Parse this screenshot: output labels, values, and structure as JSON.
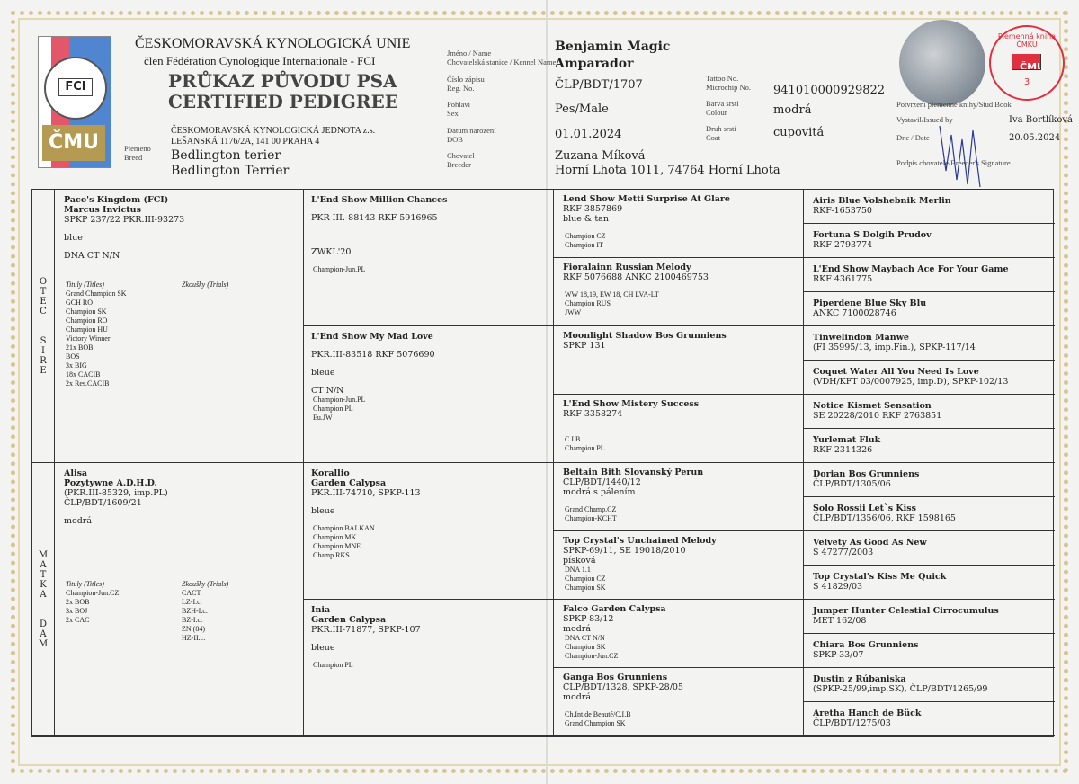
{
  "header": {
    "union": "ČESKOMORAVSKÁ KYNOLOGICKÁ UNIE",
    "fci_member": "člen Fédération Cynologique Internationale - FCI",
    "title_cz": "PRŮKAZ PŮVODU PSA",
    "title_en": "CERTIFIED PEDIGREE",
    "org": "ČESKOMORAVSKÁ KYNOLOGICKÁ JEDNOTA z.s.",
    "address": "LEŠANSKÁ 1176/2A, 141 00 PRAHA 4",
    "logo_text": "FCI",
    "logo_cmku": "ČMU",
    "breed_label_cz": "Plemeno",
    "breed_label_en": "Breed",
    "breed_cz": "Bedlington terier",
    "breed_en": "Bedlington Terrier"
  },
  "dog": {
    "name_label_cz": "Jméno / Name",
    "name_label_en": "Chovatelská stanice / Kennel Name",
    "name": "Benjamin Magic",
    "kennel": "Amparador",
    "reg_label_cz": "Číslo zápisu",
    "reg_label_en": "Reg. No.",
    "reg": "ČLP/BDT/1707",
    "sex_label_cz": "Pohlaví",
    "sex_label_en": "Sex",
    "sex": "Pes/Male",
    "dob_label_cz": "Datum narození",
    "dob_label_en": "DOB",
    "dob": "01.01.2024",
    "breeder_label_cz": "Chovatel",
    "breeder_label_en": "Breeder",
    "breeder_name": "Zuzana Míková",
    "breeder_address": "Horní Lhota 1011, 74764 Horní Lhota",
    "tattoo_label": "Tattoo No.",
    "chip_label": "Microchip No.",
    "chip": "941010000929822",
    "colour_label_cz": "Barva srsti",
    "colour_label_en": "Colour",
    "colour": "modrá",
    "coat_label_cz": "Druh srsti",
    "coat_label_en": "Coat",
    "coat": "cupovitá"
  },
  "studbook": {
    "confirm_label": "Potvrzení plemenné knihy/Stud Book",
    "issued_label": "Vystavil/Issued by",
    "issued_by": "Iva Bortlíková",
    "date_label": "Dne / Date",
    "date": "20.05.2024",
    "signature_label": "Podpis chovatele/Breeder's Signature",
    "stamp_text": "Plemenná kniha ČMKU",
    "stamp_number": "3"
  },
  "side_labels": {
    "sire": [
      "O",
      "T",
      "E",
      "C",
      "",
      "S",
      "I",
      "R",
      "E"
    ],
    "dam": [
      "M",
      "A",
      "T",
      "K",
      "A",
      "",
      "D",
      "A",
      "M"
    ]
  },
  "pedigree": {
    "sire": {
      "bold": [
        "Paco's Kingdom (FCI)",
        "Marcus Invictus"
      ],
      "lines": [
        "SPKP 237/22 PKR.III-93273",
        "",
        "blue",
        "",
        "DNA CT N/N"
      ],
      "titles_label": "Tituly (Titles)",
      "trials_label": "Zkoušky (Trials)",
      "titles": [
        "Grand Champion SK",
        "GCH RO",
        "Champion SK",
        "Champion RO",
        "Champion HU",
        "Victory Winner",
        "21x BOB",
        "BOS",
        "3x BIG",
        "18x CACIB",
        "2x Res.CACIB"
      ],
      "trials": []
    },
    "dam": {
      "bold": [
        "Alisa",
        "Pozytywne A.D.H.D."
      ],
      "lines": [
        "(PKR.III-85329, imp.PL)",
        "ČLP/BDT/1609/21",
        "",
        "modrá"
      ],
      "titles_label": "Tituly (Titles)",
      "trials_label": "Zkoušky (Trials)",
      "titles": [
        "Champion-Jun.CZ",
        "2x BOB",
        "3x BOJ",
        "2x CAC"
      ],
      "trials": [
        "CACT",
        "LZ-I.c.",
        "BZH-I.c.",
        "BZ-I.c.",
        "ZN (84)",
        "HZ-II.c."
      ]
    },
    "gen2": [
      {
        "bold": [
          "L'End Show Million Chances"
        ],
        "lines": [
          "",
          "PKR III.-88143 RKF 5916965",
          "",
          "",
          "",
          "ZWKL'20",
          ""
        ],
        "small": [
          "Champion-Jun.PL"
        ]
      },
      {
        "bold": [
          "L'End Show My Mad Love"
        ],
        "lines": [
          "",
          "PKR.III-83518 RKF 5076690",
          "",
          "bleue",
          "",
          "CT N/N"
        ],
        "small": [
          "Champion-Jun.PL",
          "Champion PL",
          "Eu.JW"
        ]
      },
      {
        "bold": [
          "Korallio",
          "Garden Calypsa"
        ],
        "lines": [
          "PKR.III-74710, SPKP-113",
          "",
          "bleue",
          ""
        ],
        "small": [
          "Champion BALKAN",
          "Champion MK",
          "Champion MNE",
          "Champ.RKS"
        ]
      },
      {
        "bold": [
          "Inia",
          "Garden Calypsa"
        ],
        "lines": [
          "PKR.III-71877, SPKP-107",
          "",
          "bleue",
          ""
        ],
        "small": [
          "Champion PL"
        ]
      }
    ],
    "gen3": [
      {
        "bold": [
          "Lend Show Metti Surprise At Glare"
        ],
        "lines": [
          "RKF 3857869",
          "blue & tan",
          ""
        ],
        "small": [
          "Champion CZ",
          "Champion IT"
        ]
      },
      {
        "bold": [
          "Fioralainn Russian Melody"
        ],
        "lines": [
          "RKF 5076688 ANKC 2100469753",
          ""
        ],
        "small": [
          "WW 18,19, EW 18, CH LVA-LT",
          "Champion RUS",
          "JWW"
        ]
      },
      {
        "bold": [
          "Moonlight Shadow Bos Grunniens"
        ],
        "lines": [
          "SPKP 131"
        ],
        "small": []
      },
      {
        "bold": [
          "L'End Show Mistery Success"
        ],
        "lines": [
          "RKF 3358274",
          "",
          ""
        ],
        "small": [
          "C.I.B.",
          "Champion PL"
        ]
      },
      {
        "bold": [
          "Beltain Bith Slovanský Perun"
        ],
        "lines": [
          "ČLP/BDT/1440/12",
          "modrá s pálením",
          ""
        ],
        "small": [
          "Grand Champ.CZ",
          "Champion-KCHT"
        ]
      },
      {
        "bold": [
          "Top Crystal's Unchained Melody"
        ],
        "lines": [
          "SPKP-69/11, SE 19018/2010",
          "písková"
        ],
        "small": [
          "DNA 1.1",
          "Champion CZ",
          "Champion SK"
        ]
      },
      {
        "bold": [
          "Falco Garden Calypsa"
        ],
        "lines": [
          "SPKP-83/12",
          "modrá"
        ],
        "small": [
          "DNA CT N/N",
          "Champion SK",
          "Champion-Jun.CZ"
        ]
      },
      {
        "bold": [
          "Ganga Bos Grunniens"
        ],
        "lines": [
          "ČLP/BDT/1328, SPKP-28/05",
          "modrá",
          ""
        ],
        "small": [
          "Ch.Int.de Beauté/C.I.B",
          "Grand Champion SK"
        ]
      }
    ],
    "gen4": [
      {
        "bold": [
          "Airis Blue Volshebnik Merlin"
        ],
        "lines": [
          "RKF-1653750"
        ]
      },
      {
        "bold": [
          "Fortuna S Dolgih Prudov"
        ],
        "lines": [
          "RKF 2793774"
        ]
      },
      {
        "bold": [
          "L'End Show Maybach Ace For Your Game"
        ],
        "lines": [
          "RKF 4361775"
        ]
      },
      {
        "bold": [
          "Piperdene Blue Sky Blu"
        ],
        "lines": [
          "ANKC 7100028746"
        ]
      },
      {
        "bold": [
          "Tinwelindon Manwe"
        ],
        "lines": [
          "(FI 35995/13, imp.Fin.), SPKP-117/14"
        ]
      },
      {
        "bold": [
          "Coquet Water All You Need Is Love"
        ],
        "lines": [
          "(VDH/KFT 03/0007925, imp.D), SPKP-102/13"
        ]
      },
      {
        "bold": [
          "Notice Kismet Sensation"
        ],
        "lines": [
          "SE 20228/2010 RKF 2763851"
        ]
      },
      {
        "bold": [
          "Yurlemat Fluk"
        ],
        "lines": [
          "RKF 2314326"
        ]
      },
      {
        "bold": [
          "Dorian Bos Grunniens"
        ],
        "lines": [
          "ČLP/BDT/1305/06"
        ]
      },
      {
        "bold": [
          "Solo Rossii Let`s Kiss"
        ],
        "lines": [
          "ČLP/BDT/1356/06, RKF 1598165"
        ]
      },
      {
        "bold": [
          "Velvety As Good As New"
        ],
        "lines": [
          "S 47277/2003"
        ]
      },
      {
        "bold": [
          "Top Crystal's Kiss Me Quick"
        ],
        "lines": [
          "S 41829/03"
        ]
      },
      {
        "bold": [
          "Jumper Hunter Celestial Cirrocumulus"
        ],
        "lines": [
          "MET 162/08"
        ]
      },
      {
        "bold": [
          "Chiara Bos Grunniens"
        ],
        "lines": [
          "SPKP-33/07"
        ]
      },
      {
        "bold": [
          "Dustin z Rúbaniska"
        ],
        "lines": [
          "(SPKP-25/99,imp.SK), ČLP/BDT/1265/99"
        ]
      },
      {
        "bold": [
          "Aretha Hanch de Bück"
        ],
        "lines": [
          "ČLP/BDT/1275/03"
        ]
      }
    ]
  },
  "colors": {
    "paper": "#f3f3f1",
    "border_pattern": "#d8c48f",
    "stamp": "#e03040",
    "logo_red": "#e4566a",
    "logo_blue": "#4f86cf",
    "logo_gold": "#b59a52"
  }
}
